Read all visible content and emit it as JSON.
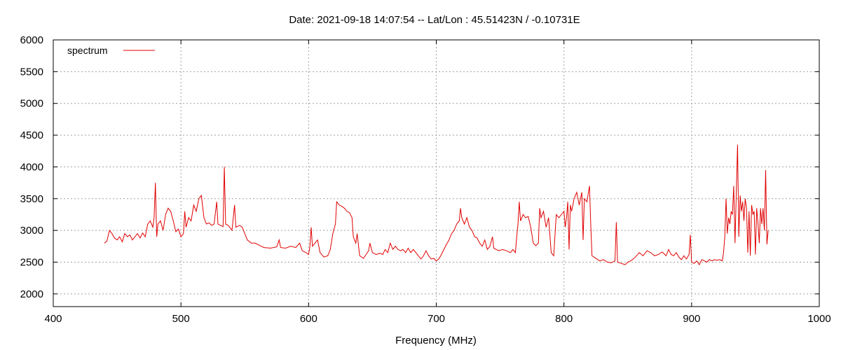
{
  "chart_data": {
    "type": "line",
    "title": "Date: 2021-09-18 14:07:54  --  Lat/Lon : 45.51423N / -0.10731E",
    "xlabel": "Frequency (MHz)",
    "ylabel": "",
    "xlim": [
      400,
      1000
    ],
    "ylim": [
      1800,
      6000
    ],
    "xticks": [
      400,
      500,
      600,
      700,
      800,
      900,
      1000
    ],
    "yticks": [
      2000,
      2500,
      3000,
      3500,
      4000,
      4500,
      5000,
      5500,
      6000
    ],
    "grid": true,
    "legend_position": "top-left",
    "series": [
      {
        "name": "spectrum",
        "color": "#e00000",
        "points": [
          [
            440,
            2800
          ],
          [
            442,
            2830
          ],
          [
            444,
            3000
          ],
          [
            446,
            2950
          ],
          [
            448,
            2880
          ],
          [
            450,
            2850
          ],
          [
            452,
            2900
          ],
          [
            454,
            2820
          ],
          [
            456,
            2950
          ],
          [
            458,
            2900
          ],
          [
            460,
            2930
          ],
          [
            462,
            2850
          ],
          [
            464,
            2900
          ],
          [
            466,
            2950
          ],
          [
            468,
            2880
          ],
          [
            470,
            2960
          ],
          [
            472,
            2900
          ],
          [
            474,
            3100
          ],
          [
            476,
            3150
          ],
          [
            478,
            3050
          ],
          [
            479,
            3200
          ],
          [
            480,
            3750
          ],
          [
            481,
            2900
          ],
          [
            482,
            3100
          ],
          [
            484,
            3150
          ],
          [
            486,
            3000
          ],
          [
            488,
            3250
          ],
          [
            490,
            3350
          ],
          [
            492,
            3300
          ],
          [
            494,
            3150
          ],
          [
            496,
            2980
          ],
          [
            498,
            3020
          ],
          [
            500,
            2900
          ],
          [
            502,
            2950
          ],
          [
            503,
            3300
          ],
          [
            504,
            3050
          ],
          [
            506,
            3200
          ],
          [
            508,
            3150
          ],
          [
            510,
            3400
          ],
          [
            512,
            3300
          ],
          [
            514,
            3500
          ],
          [
            516,
            3550
          ],
          [
            518,
            3200
          ],
          [
            520,
            3100
          ],
          [
            522,
            3120
          ],
          [
            524,
            3080
          ],
          [
            526,
            3100
          ],
          [
            528,
            3450
          ],
          [
            529,
            3100
          ],
          [
            531,
            3080
          ],
          [
            533,
            3060
          ],
          [
            534,
            4000
          ],
          [
            535,
            3100
          ],
          [
            537,
            3080
          ],
          [
            540,
            3000
          ],
          [
            542,
            3400
          ],
          [
            543,
            3050
          ],
          [
            546,
            3080
          ],
          [
            548,
            3050
          ],
          [
            550,
            2950
          ],
          [
            552,
            2850
          ],
          [
            555,
            2800
          ],
          [
            558,
            2800
          ],
          [
            562,
            2760
          ],
          [
            565,
            2730
          ],
          [
            570,
            2720
          ],
          [
            575,
            2740
          ],
          [
            577,
            2850
          ],
          [
            578,
            2730
          ],
          [
            582,
            2720
          ],
          [
            586,
            2750
          ],
          [
            590,
            2730
          ],
          [
            593,
            2800
          ],
          [
            595,
            2680
          ],
          [
            598,
            2650
          ],
          [
            600,
            2620
          ],
          [
            601,
            2750
          ],
          [
            602,
            3050
          ],
          [
            603,
            2750
          ],
          [
            605,
            2800
          ],
          [
            607,
            2850
          ],
          [
            609,
            2650
          ],
          [
            612,
            2580
          ],
          [
            615,
            2600
          ],
          [
            617,
            2700
          ],
          [
            619,
            2950
          ],
          [
            621,
            3100
          ],
          [
            622,
            3450
          ],
          [
            624,
            3400
          ],
          [
            626,
            3380
          ],
          [
            628,
            3350
          ],
          [
            630,
            3300
          ],
          [
            632,
            3280
          ],
          [
            634,
            3200
          ],
          [
            635,
            2900
          ],
          [
            637,
            2800
          ],
          [
            638,
            2950
          ],
          [
            640,
            2600
          ],
          [
            643,
            2560
          ],
          [
            645,
            2620
          ],
          [
            647,
            2680
          ],
          [
            648,
            2800
          ],
          [
            650,
            2650
          ],
          [
            653,
            2620
          ],
          [
            656,
            2640
          ],
          [
            658,
            2620
          ],
          [
            660,
            2700
          ],
          [
            662,
            2650
          ],
          [
            664,
            2800
          ],
          [
            666,
            2700
          ],
          [
            668,
            2750
          ],
          [
            670,
            2700
          ],
          [
            672,
            2680
          ],
          [
            674,
            2700
          ],
          [
            676,
            2650
          ],
          [
            678,
            2720
          ],
          [
            680,
            2650
          ],
          [
            682,
            2700
          ],
          [
            684,
            2650
          ],
          [
            686,
            2600
          ],
          [
            688,
            2550
          ],
          [
            690,
            2600
          ],
          [
            692,
            2680
          ],
          [
            694,
            2600
          ],
          [
            696,
            2550
          ],
          [
            698,
            2560
          ],
          [
            700,
            2520
          ],
          [
            702,
            2550
          ],
          [
            704,
            2620
          ],
          [
            706,
            2700
          ],
          [
            708,
            2780
          ],
          [
            710,
            2850
          ],
          [
            712,
            2950
          ],
          [
            714,
            3000
          ],
          [
            716,
            3100
          ],
          [
            718,
            3150
          ],
          [
            719,
            3350
          ],
          [
            720,
            3200
          ],
          [
            722,
            3100
          ],
          [
            724,
            3200
          ],
          [
            726,
            3050
          ],
          [
            728,
            3000
          ],
          [
            730,
            2900
          ],
          [
            732,
            2880
          ],
          [
            734,
            2800
          ],
          [
            736,
            2750
          ],
          [
            738,
            2850
          ],
          [
            740,
            2700
          ],
          [
            742,
            2750
          ],
          [
            744,
            2900
          ],
          [
            745,
            2720
          ],
          [
            747,
            2700
          ],
          [
            749,
            2680
          ],
          [
            752,
            2700
          ],
          [
            755,
            2680
          ],
          [
            758,
            2650
          ],
          [
            760,
            2700
          ],
          [
            762,
            2650
          ],
          [
            763,
            2900
          ],
          [
            764,
            3100
          ],
          [
            765,
            3450
          ],
          [
            766,
            3150
          ],
          [
            768,
            3250
          ],
          [
            770,
            3200
          ],
          [
            772,
            3220
          ],
          [
            774,
            3050
          ],
          [
            776,
            2800
          ],
          [
            778,
            2760
          ],
          [
            780,
            2800
          ],
          [
            781,
            3350
          ],
          [
            782,
            3200
          ],
          [
            784,
            3300
          ],
          [
            786,
            3050
          ],
          [
            788,
            3200
          ],
          [
            790,
            2650
          ],
          [
            792,
            2600
          ],
          [
            794,
            3250
          ],
          [
            796,
            3200
          ],
          [
            798,
            3250
          ],
          [
            800,
            3300
          ],
          [
            801,
            3050
          ],
          [
            802,
            3200
          ],
          [
            803,
            3450
          ],
          [
            804,
            2700
          ],
          [
            805,
            3400
          ],
          [
            806,
            3300
          ],
          [
            808,
            3500
          ],
          [
            810,
            3600
          ],
          [
            812,
            3400
          ],
          [
            814,
            3600
          ],
          [
            815,
            2850
          ],
          [
            816,
            3500
          ],
          [
            818,
            3450
          ],
          [
            820,
            3700
          ],
          [
            821,
            3100
          ],
          [
            822,
            2600
          ],
          [
            825,
            2560
          ],
          [
            828,
            2520
          ],
          [
            831,
            2540
          ],
          [
            834,
            2500
          ],
          [
            837,
            2490
          ],
          [
            840,
            2520
          ],
          [
            841,
            3130
          ],
          [
            842,
            2500
          ],
          [
            845,
            2480
          ],
          [
            848,
            2460
          ],
          [
            850,
            2500
          ],
          [
            853,
            2530
          ],
          [
            856,
            2580
          ],
          [
            859,
            2650
          ],
          [
            862,
            2600
          ],
          [
            865,
            2680
          ],
          [
            868,
            2650
          ],
          [
            871,
            2600
          ],
          [
            874,
            2620
          ],
          [
            877,
            2660
          ],
          [
            880,
            2600
          ],
          [
            882,
            2700
          ],
          [
            884,
            2620
          ],
          [
            886,
            2600
          ],
          [
            888,
            2650
          ],
          [
            890,
            2580
          ],
          [
            892,
            2540
          ],
          [
            894,
            2600
          ],
          [
            896,
            2550
          ],
          [
            898,
            2620
          ],
          [
            899,
            2930
          ],
          [
            900,
            2500
          ],
          [
            902,
            2480
          ],
          [
            904,
            2520
          ],
          [
            906,
            2460
          ],
          [
            908,
            2540
          ],
          [
            910,
            2520
          ],
          [
            912,
            2500
          ],
          [
            914,
            2540
          ],
          [
            916,
            2520
          ],
          [
            918,
            2540
          ],
          [
            920,
            2530
          ],
          [
            922,
            2540
          ],
          [
            924,
            2520
          ],
          [
            925,
            2650
          ],
          [
            926,
            2900
          ],
          [
            927,
            3500
          ],
          [
            928,
            2950
          ],
          [
            929,
            3200
          ],
          [
            930,
            3100
          ],
          [
            931,
            3300
          ],
          [
            932,
            3250
          ],
          [
            933,
            3700
          ],
          [
            934,
            2800
          ],
          [
            935,
            3600
          ],
          [
            936,
            4350
          ],
          [
            937,
            2900
          ],
          [
            938,
            3550
          ],
          [
            939,
            3300
          ],
          [
            940,
            3450
          ],
          [
            941,
            3150
          ],
          [
            942,
            3500
          ],
          [
            943,
            3350
          ],
          [
            944,
            2650
          ],
          [
            945,
            3300
          ],
          [
            946,
            2600
          ],
          [
            947,
            3400
          ],
          [
            948,
            3250
          ],
          [
            949,
            3300
          ],
          [
            950,
            2620
          ],
          [
            951,
            3350
          ],
          [
            952,
            3100
          ],
          [
            953,
            2800
          ],
          [
            954,
            3350
          ],
          [
            955,
            3100
          ],
          [
            956,
            3350
          ],
          [
            957,
            3000
          ],
          [
            958,
            3950
          ],
          [
            959,
            2780
          ],
          [
            960,
            3000
          ]
        ]
      }
    ]
  }
}
